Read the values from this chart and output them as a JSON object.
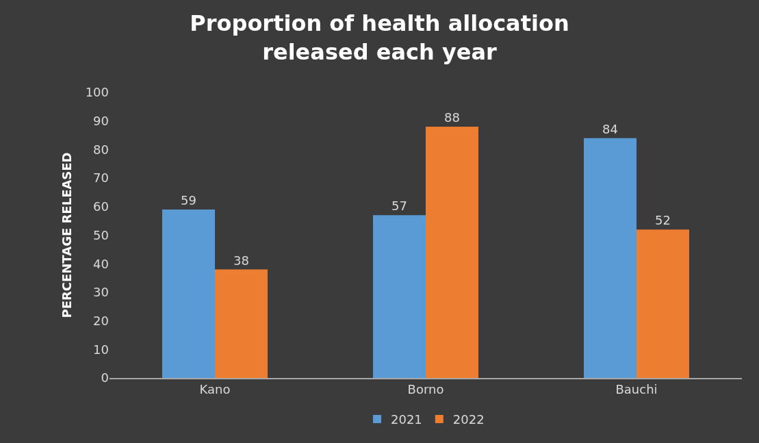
{
  "chart_data": {
    "type": "bar",
    "title": "Proportion of health allocation released each year",
    "ylabel": "PERCENTAGE RELEASED",
    "categories": [
      "Kano",
      "Borno",
      "Bauchi"
    ],
    "series": [
      {
        "name": "2021",
        "color": "#5b9bd5",
        "values": [
          59,
          57,
          84
        ]
      },
      {
        "name": "2022",
        "color": "#ed7d31",
        "values": [
          38,
          88,
          52
        ]
      }
    ],
    "ylim": [
      0,
      100
    ],
    "yticks": [
      0,
      10,
      20,
      30,
      40,
      50,
      60,
      70,
      80,
      90,
      100
    ],
    "grid": false,
    "legend": "bottom",
    "data_labels": true
  }
}
